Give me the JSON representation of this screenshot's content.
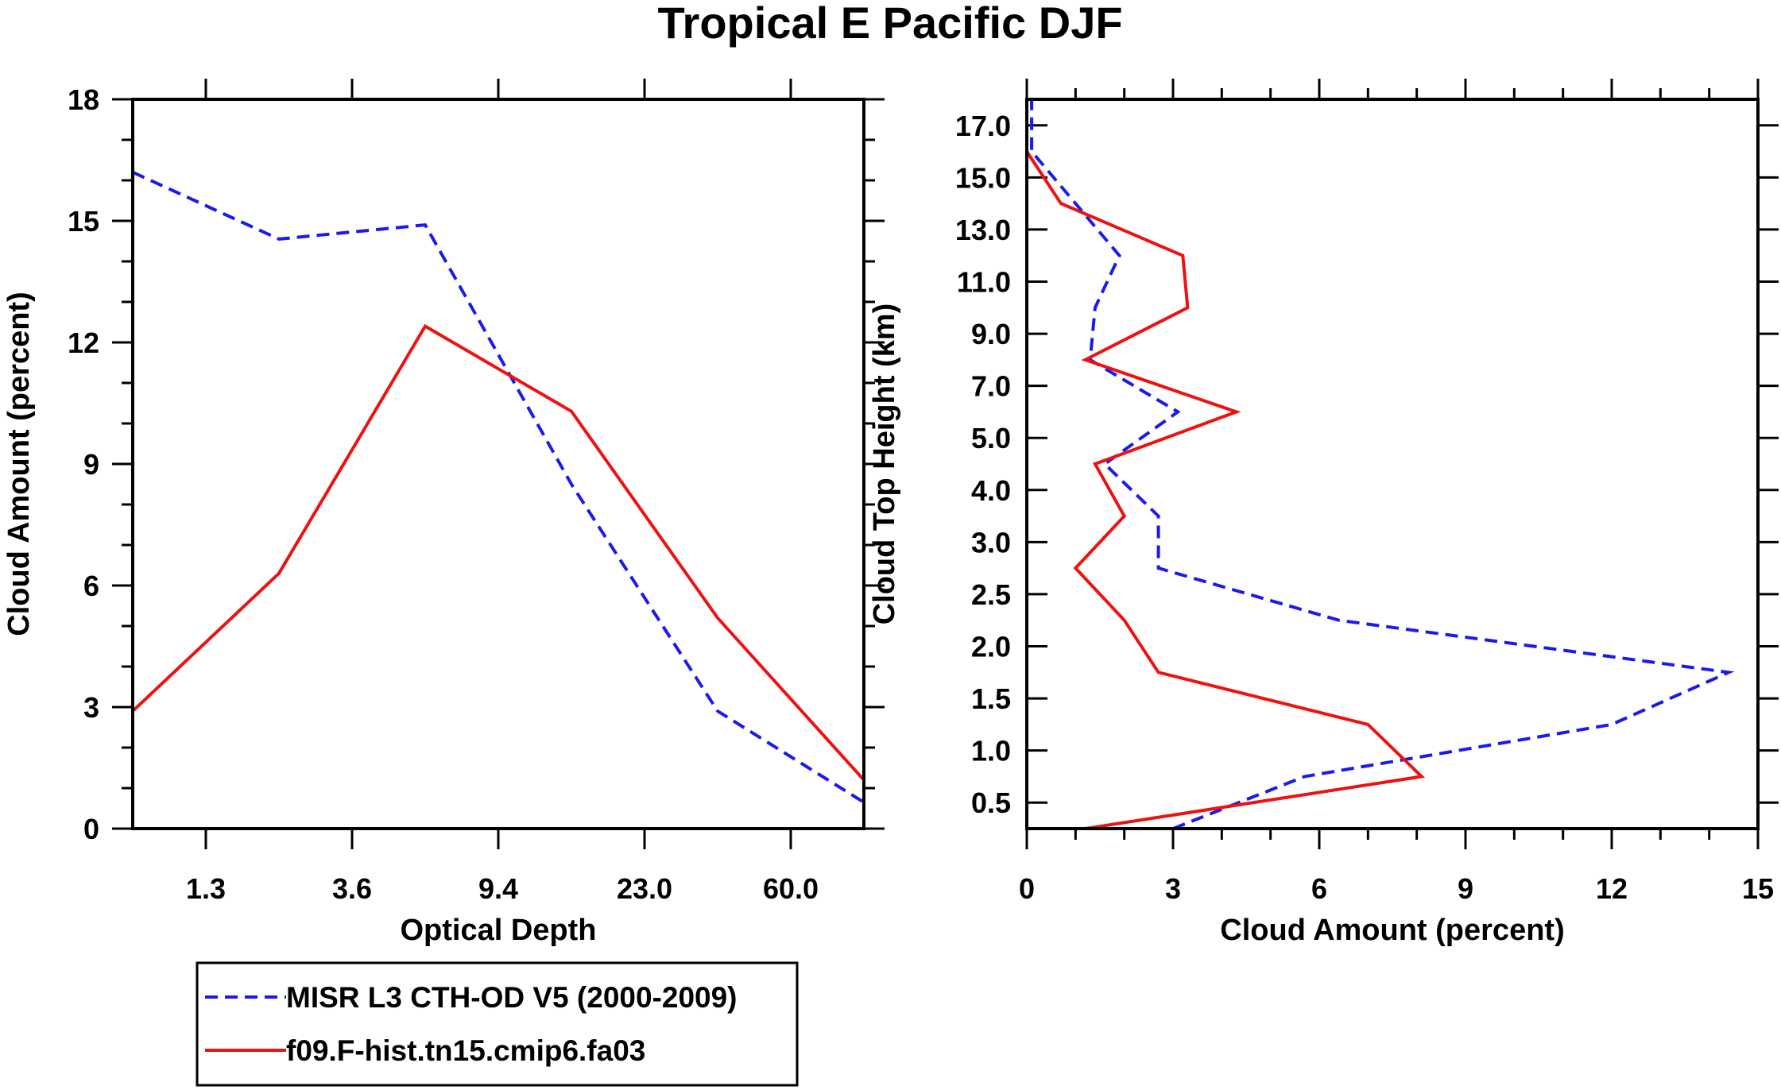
{
  "figure_title": "Tropical E Pacific DJF",
  "legend": [
    {
      "label": "MISR L3 CTH-OD V5 (2000-2009)",
      "color": "#1a1aee",
      "dash": true
    },
    {
      "label": "f09.F-hist.tn15.cmip6.fa03",
      "color": "#ee1111",
      "dash": false
    }
  ],
  "chart_data": [
    {
      "type": "line",
      "title": "",
      "xlabel": "Optical Depth",
      "ylabel": "Cloud Amount (percent)",
      "x_ticks": [
        "1.3",
        "3.6",
        "9.4",
        "23.0",
        "60.0"
      ],
      "x_tick_pos": [
        1,
        3,
        5,
        7,
        9
      ],
      "xlim": [
        0,
        10
      ],
      "y_ticks": [
        "0",
        "3",
        "6",
        "9",
        "12",
        "15",
        "18"
      ],
      "ylim": [
        0,
        18
      ],
      "series": [
        {
          "name": "MISR L3 CTH-OD V5 (2000-2009)",
          "x": [
            0,
            2,
            4,
            6,
            8,
            10
          ],
          "values": [
            16.2,
            14.55,
            14.9,
            8.5,
            2.9,
            0.65
          ]
        },
        {
          "name": "f09.F-hist.tn15.cmip6.fa03",
          "x": [
            0,
            2,
            4,
            6,
            8,
            10
          ],
          "values": [
            2.9,
            6.3,
            12.4,
            10.3,
            5.2,
            1.2
          ]
        }
      ]
    },
    {
      "type": "line",
      "title": "",
      "xlabel": "Cloud Amount (percent)",
      "ylabel": "Cloud Top Height (km)",
      "x_ticks": [
        "0",
        "3",
        "6",
        "9",
        "12",
        "15"
      ],
      "xlim": [
        0,
        15
      ],
      "y_ticks": [
        "0.5",
        "1.0",
        "1.5",
        "2.0",
        "2.5",
        "3.0",
        "4.0",
        "5.0",
        "7.0",
        "9.0",
        "11.0",
        "13.0",
        "15.0",
        "17.0"
      ],
      "y_tick_pos": [
        1,
        3,
        5,
        7,
        9,
        11,
        13,
        15,
        17,
        19,
        21,
        23,
        25,
        27
      ],
      "ylim": [
        0,
        28
      ],
      "series": [
        {
          "name": "MISR L3 CTH-OD V5 (2000-2009)",
          "y": [
            0,
            2,
            4,
            6,
            8,
            10,
            12,
            12,
            14,
            16,
            18,
            20,
            22,
            24,
            26,
            28
          ],
          "values": [
            3.0,
            5.7,
            12.0,
            14.4,
            6.4,
            2.7,
            2.7,
            2.7,
            1.6,
            3.1,
            1.3,
            1.4,
            1.9,
            1.0,
            0.1,
            0.1
          ]
        },
        {
          "name": "f09.F-hist.tn15.cmip6.fa03",
          "y": [
            0,
            2,
            4,
            6,
            8,
            10,
            12,
            14,
            16,
            18,
            20,
            22,
            24,
            26
          ],
          "values": [
            1.2,
            8.1,
            7.0,
            2.7,
            2.0,
            1.0,
            2.0,
            1.4,
            4.3,
            1.2,
            3.3,
            3.2,
            0.7,
            0.0
          ]
        }
      ]
    }
  ]
}
